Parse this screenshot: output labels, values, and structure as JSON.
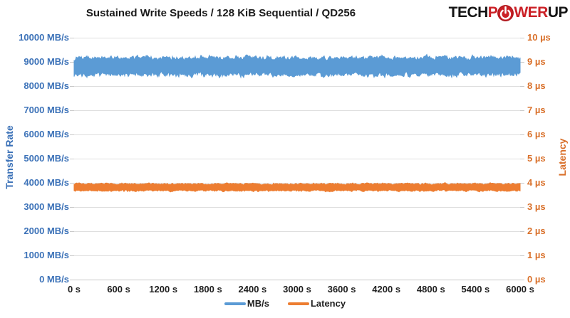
{
  "header": {
    "title": "Sustained Write Speeds / 128 KiB Sequential / QD256",
    "logo": {
      "black_left": "TECH",
      "red_left": "P",
      "icon": "power-icon",
      "red_right": "WER",
      "black_right": "UP",
      "red_color": "#cb2026",
      "black_color": "#141414"
    }
  },
  "colors": {
    "background": "#ffffff",
    "grid": "#dedede",
    "axis_line": "#c9c9c9",
    "tick_mark": "#c9c9c9",
    "text": "#1f1f1f",
    "left_axis_text": "#3c72b8",
    "right_axis_text": "#d9702a",
    "series_blue": "#5b9bd5",
    "series_orange": "#ed7d31"
  },
  "chart_data": {
    "type": "line",
    "title": "Sustained Write Speeds / 128 KiB Sequential / QD256",
    "grid": true,
    "legend_position": "bottom",
    "x_axis": {
      "unit": "s",
      "min": 0,
      "max": 6000,
      "tick_step": 600,
      "tick_labels": [
        "0 s",
        "600 s",
        "1200 s",
        "1800 s",
        "2400 s",
        "3000 s",
        "3600 s",
        "4200 s",
        "4800 s",
        "5400 s",
        "6000 s"
      ]
    },
    "y_left": {
      "title": "Transfer Rate",
      "unit": "MB/s",
      "min": 0,
      "max": 10000,
      "tick_step": 1000,
      "color": "#3c72b8",
      "tick_labels": [
        "10000 MB/s",
        "9000 MB/s",
        "8000 MB/s",
        "7000 MB/s",
        "6000 MB/s",
        "5000 MB/s",
        "4000 MB/s",
        "3000 MB/s",
        "2000 MB/s",
        "1000 MB/s",
        "0 MB/s"
      ]
    },
    "y_right": {
      "title": "Latency",
      "unit": "µs",
      "min": 0,
      "max": 10,
      "tick_step": 1,
      "color": "#d9702a",
      "tick_labels": [
        "10 µs",
        "9 µs",
        "8 µs",
        "7 µs",
        "6 µs",
        "5 µs",
        "4 µs",
        "3 µs",
        "2 µs",
        "1 µs",
        "0 µs"
      ]
    },
    "series": [
      {
        "name": "MB/s",
        "axis": "left",
        "color": "#5b9bd5",
        "sample_step_s": 100,
        "band_min": 8290,
        "band_max": 9360,
        "samples": [
          8822,
          8846,
          8806,
          8851,
          8818,
          8838,
          8798,
          8844,
          8825,
          8810,
          8849,
          8816,
          8833,
          8803,
          8847,
          8827,
          8808,
          8842,
          8819,
          8831,
          8799,
          8845,
          8823,
          8812,
          8850,
          8817,
          8836,
          8805,
          8843,
          8828,
          8807,
          8848,
          8815,
          8834,
          8801,
          8844,
          8826,
          8809,
          8840,
          8818,
          8832,
          8797,
          8846,
          8821,
          8811,
          8851,
          8814,
          8837,
          8804,
          8839,
          8827,
          8808,
          8850,
          8819,
          8835,
          8800,
          8843,
          8824,
          8813,
          8846,
          8821
        ]
      },
      {
        "name": "Latency",
        "axis": "right",
        "color": "#ed7d31",
        "sample_step_s": 100,
        "band_min": 3.6,
        "band_max": 4.03,
        "samples": [
          3.82,
          3.84,
          3.8,
          3.85,
          3.81,
          3.83,
          3.79,
          3.84,
          3.82,
          3.8,
          3.85,
          3.81,
          3.83,
          3.79,
          3.84,
          3.82,
          3.8,
          3.84,
          3.81,
          3.83,
          3.79,
          3.85,
          3.82,
          3.8,
          3.85,
          3.81,
          3.83,
          3.79,
          3.84,
          3.82,
          3.8,
          3.85,
          3.81,
          3.83,
          3.79,
          3.84,
          3.82,
          3.8,
          3.84,
          3.81,
          3.83,
          3.79,
          3.85,
          3.82,
          3.8,
          3.85,
          3.81,
          3.83,
          3.79,
          3.84,
          3.82,
          3.8,
          3.85,
          3.81,
          3.83,
          3.79,
          3.84,
          3.82,
          3.8,
          3.84,
          3.82
        ]
      }
    ]
  },
  "legend": {
    "items": [
      {
        "label": "MB/s",
        "color": "#5b9bd5"
      },
      {
        "label": "Latency",
        "color": "#ed7d31"
      }
    ]
  }
}
